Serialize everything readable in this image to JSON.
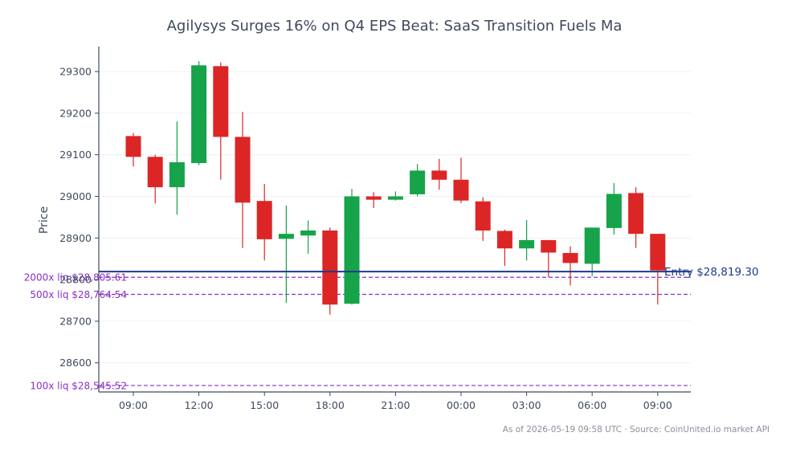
{
  "chart_data": {
    "type": "candlestick",
    "title": "Agilysys Surges 16% on Q4 EPS Beat: SaaS Transition Fuels Ma",
    "ylabel": "Price",
    "xlabel": "",
    "ylim": [
      28530,
      29360
    ],
    "y_ticks": [
      28600,
      28700,
      28800,
      28900,
      29000,
      29100,
      29200,
      29300
    ],
    "x_tick_labels": [
      "09:00",
      "12:00",
      "15:00",
      "18:00",
      "21:00",
      "00:00",
      "03:00",
      "06:00",
      "09:00"
    ],
    "x_tick_indices": [
      0,
      3,
      6,
      9,
      12,
      15,
      18,
      21,
      24
    ],
    "grid": "horizontal",
    "colors": {
      "up": "#16a34a",
      "down": "#dc2626",
      "entry": "#1f3a8a",
      "liq": "#8a2fc9",
      "axis": "#3f4a5e",
      "grid": "#eef0f3"
    },
    "candles": [
      {
        "time": "09:00",
        "open": 29145,
        "high": 29152,
        "low": 29072,
        "close": 29095
      },
      {
        "time": "10:00",
        "open": 29095,
        "high": 29100,
        "low": 28983,
        "close": 29022
      },
      {
        "time": "11:00",
        "open": 29022,
        "high": 29180,
        "low": 28956,
        "close": 29082
      },
      {
        "time": "12:00",
        "open": 29080,
        "high": 29325,
        "low": 29075,
        "close": 29315
      },
      {
        "time": "13:00",
        "open": 29313,
        "high": 29322,
        "low": 29040,
        "close": 29143
      },
      {
        "time": "14:00",
        "open": 29143,
        "high": 29203,
        "low": 28876,
        "close": 28985
      },
      {
        "time": "15:00",
        "open": 28989,
        "high": 29030,
        "low": 28846,
        "close": 28897
      },
      {
        "time": "16:00",
        "open": 28898,
        "high": 28978,
        "low": 28744,
        "close": 28910
      },
      {
        "time": "17:00",
        "open": 28906,
        "high": 28942,
        "low": 28862,
        "close": 28918
      },
      {
        "time": "18:00",
        "open": 28918,
        "high": 28925,
        "low": 28716,
        "close": 28740
      },
      {
        "time": "19:00",
        "open": 28742,
        "high": 29018,
        "low": 28740,
        "close": 29000
      },
      {
        "time": "20:00",
        "open": 29000,
        "high": 29010,
        "low": 28972,
        "close": 28992
      },
      {
        "time": "21:00",
        "open": 28992,
        "high": 29012,
        "low": 28990,
        "close": 29000
      },
      {
        "time": "22:00",
        "open": 29005,
        "high": 29078,
        "low": 29000,
        "close": 29062
      },
      {
        "time": "23:00",
        "open": 29062,
        "high": 29090,
        "low": 29016,
        "close": 29040
      },
      {
        "time": "00:00",
        "open": 29040,
        "high": 29093,
        "low": 28984,
        "close": 28990
      },
      {
        "time": "01:00",
        "open": 28988,
        "high": 28998,
        "low": 28893,
        "close": 28918
      },
      {
        "time": "02:00",
        "open": 28917,
        "high": 28920,
        "low": 28833,
        "close": 28875
      },
      {
        "time": "03:00",
        "open": 28875,
        "high": 28943,
        "low": 28846,
        "close": 28895
      },
      {
        "time": "04:00",
        "open": 28895,
        "high": 28895,
        "low": 28806,
        "close": 28865
      },
      {
        "time": "05:00",
        "open": 28864,
        "high": 28880,
        "low": 28786,
        "close": 28840
      },
      {
        "time": "06:00",
        "open": 28838,
        "high": 28925,
        "low": 28808,
        "close": 28925
      },
      {
        "time": "07:00",
        "open": 28924,
        "high": 29032,
        "low": 28908,
        "close": 29006
      },
      {
        "time": "08:00",
        "open": 29008,
        "high": 29022,
        "low": 28876,
        "close": 28910
      },
      {
        "time": "09:00",
        "open": 28910,
        "high": 28910,
        "low": 28740,
        "close": 28822
      }
    ],
    "entry": {
      "price": 28819.3,
      "label": "Entry $28,819.30"
    },
    "liquidations": [
      {
        "price": 28805.61,
        "label": "2000x liq $28,805.61"
      },
      {
        "price": 28764.54,
        "label": "500x liq $28,764.54"
      },
      {
        "price": 28545.52,
        "label": "100x liq $28,545.52"
      }
    ]
  },
  "footer": "As of 2026-05-19 09:58 UTC · Source: CoinUnited.io market API"
}
